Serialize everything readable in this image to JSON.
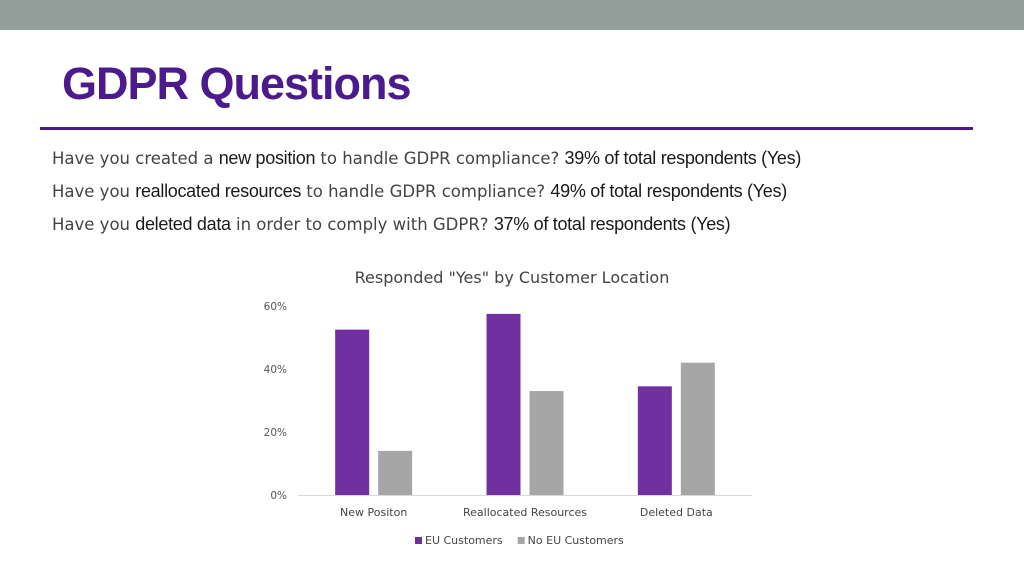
{
  "slide": {
    "title": "GDPR Questions",
    "questions": [
      {
        "pre": "Have you created a ",
        "highlight": "new position",
        "mid": " to handle GDPR compliance? ",
        "answer": "39% of total respondents (Yes)"
      },
      {
        "pre": "Have you ",
        "highlight": "reallocated resources",
        "mid": " to handle GDPR compliance? ",
        "answer": "49% of total respondents (Yes)"
      },
      {
        "pre": "Have you ",
        "highlight": "deleted data",
        "mid": " in order to comply with GDPR? ",
        "answer": "37% of total respondents (Yes)"
      }
    ]
  },
  "colors": {
    "accent": "#4b1a8c",
    "topbar": "#919e99"
  },
  "chart_data": {
    "type": "bar",
    "title": "Responded \"Yes\" by Customer Location",
    "categories": [
      "New Positon",
      "Reallocated Resources",
      "Deleted Data"
    ],
    "series": [
      {
        "name": "EU Customers",
        "color": "#7030a0",
        "values": [
          52.5,
          57.5,
          34.5
        ]
      },
      {
        "name": "No EU Customers",
        "color": "#a6a6a6",
        "values": [
          14,
          33,
          42
        ]
      }
    ],
    "ylim": [
      0,
      60
    ],
    "yticks": [
      0,
      20,
      40,
      60
    ],
    "ytick_labels": [
      "0%",
      "20%",
      "40%",
      "60%"
    ],
    "grid": false,
    "legend": "bottom"
  }
}
